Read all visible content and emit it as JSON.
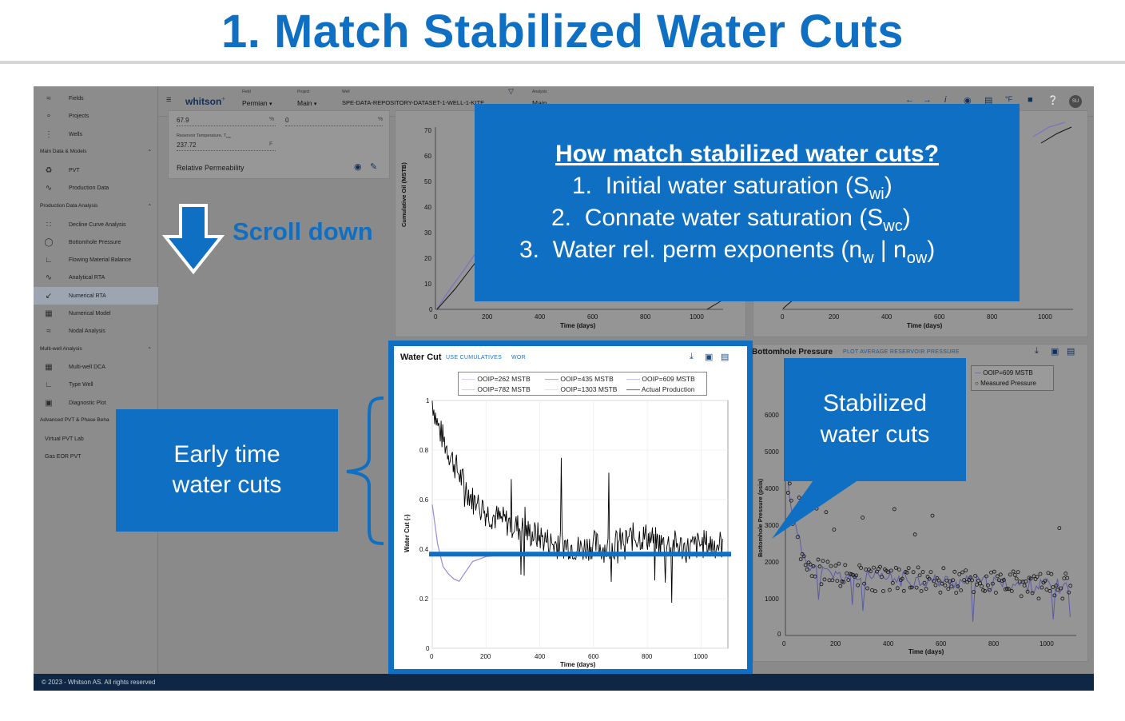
{
  "slide": {
    "title": "1. Match Stabilized Water Cuts"
  },
  "sidebar": {
    "items": [
      {
        "label": "Fields",
        "icon": "fields-icon"
      },
      {
        "label": "Projects",
        "icon": "projects-icon"
      },
      {
        "label": "Wells",
        "icon": "wells-icon"
      }
    ],
    "sections": [
      {
        "label": "Main Data & Models"
      },
      {
        "label": "Production Data Analysis"
      },
      {
        "label": "Multi-well Analysis"
      },
      {
        "label": "Advanced PVT & Phase Beha"
      }
    ],
    "main_items": [
      {
        "label": "PVT",
        "icon": "flask-icon"
      },
      {
        "label": "Production Data",
        "icon": "trend-icon"
      }
    ],
    "pda_items": [
      {
        "label": "Decline Curve Analysis",
        "icon": "scatter-icon"
      },
      {
        "label": "Bottomhole Pressure",
        "icon": "gauge-icon"
      },
      {
        "label": "Flowing Material Balance",
        "icon": "chart-icon"
      },
      {
        "label": "Analytical RTA",
        "icon": "trend-icon"
      },
      {
        "label": "Numerical RTA",
        "icon": "nrta-icon"
      },
      {
        "label": "Numerical Model",
        "icon": "grid-icon"
      },
      {
        "label": "Nodal Analysis",
        "icon": "nodal-icon"
      }
    ],
    "mw_items": [
      {
        "label": "Multi-well DCA",
        "icon": "multi-icon"
      },
      {
        "label": "Type Well",
        "icon": "type-well-icon"
      },
      {
        "label": "Diagnostic Plot",
        "icon": "diag-icon"
      }
    ],
    "adv_items": [
      {
        "label": "Virtual PVT Lab"
      },
      {
        "label": "Gas EOR PVT"
      }
    ],
    "footer": "© 2023 - Whitson AS. All rights reserved"
  },
  "topbar": {
    "brand": "whitson",
    "brand_sup": "+",
    "field_label": "Field",
    "field_value": "Permian",
    "project_label": "Project",
    "project_value": "Main",
    "well_label": "Well",
    "well_value": "SPE-DATA-REPOSITORY-DATASET-1-WELL-1-KITE",
    "analysis_label": "Analysis",
    "analysis_value": "Main"
  },
  "left_panel": {
    "field1_value": "67.9",
    "field1_unit": "%",
    "field2_value": "0",
    "field2_unit": "%",
    "temp_label": "Reservoir Temperature, T",
    "temp_sub": "res",
    "temp_value": "237.72",
    "temp_unit": "F",
    "relperm_label": "Relative Permeability"
  },
  "callouts": {
    "scroll_down": "Scroll down",
    "question_title": "How match stabilized water cuts?",
    "q_items": [
      {
        "num": "1.",
        "text": "Initial water saturation (S",
        "sub": "wi",
        "tail": ")"
      },
      {
        "num": "2.",
        "text": "Connate water saturation (S",
        "sub": "wc",
        "tail": ")"
      },
      {
        "num": "3.",
        "text": "Water rel. perm exponents (n",
        "sub": "w",
        "mid": " | n",
        "sub2": "ow",
        "tail": ")"
      }
    ],
    "early_line1": "Early time",
    "early_line2": "water cuts",
    "stab_line1": "Stabilized",
    "stab_line2": "water cuts"
  },
  "top_left_chart": {
    "ylabel": "Cumulative Oil (MSTB)",
    "xlabel": "Time (days)",
    "yticks": [
      "70",
      "60",
      "50",
      "40",
      "30",
      "20",
      "10",
      "0"
    ],
    "xticks": [
      "0",
      "200",
      "400",
      "600",
      "800",
      "1000"
    ]
  },
  "top_right_chart": {
    "xlabel": "Time (days)",
    "xticks": [
      "0",
      "200",
      "400",
      "600",
      "800",
      "1000"
    ]
  },
  "bhp_panel": {
    "title": "Bottomhole Pressure",
    "link": "PLOT AVERAGE RESERVOIR PRESSURE",
    "ylabel": "Bottomhole Pressure (psia)",
    "xlabel": "Time (days)",
    "yticks": [
      "6000",
      "5000",
      "4000",
      "3000",
      "2000",
      "1000",
      "0"
    ],
    "xticks": [
      "0",
      "200",
      "400",
      "600",
      "800",
      "1000"
    ],
    "legend": [
      "OOIP=609 MSTB",
      "Measured Pressure"
    ]
  },
  "wc_panel": {
    "title": "Water Cut",
    "link1": "USE CUMULATIVES",
    "link2": "WOR",
    "ylabel": "Water Cut (-)",
    "xlabel": "Time (days)",
    "yticks": [
      "1",
      "0.8",
      "0.6",
      "0.4",
      "0.2",
      "0"
    ],
    "xticks": [
      "0",
      "200",
      "400",
      "600",
      "800",
      "1000"
    ],
    "legend": [
      "OOIP=262 MSTB",
      "OOIP=435 MSTB",
      "OOIP=609 MSTB",
      "OOIP=782 MSTB",
      "OOIP=1303 MSTB",
      "Actual Production"
    ]
  },
  "chart_data": {
    "type": "line",
    "title": "Water Cut",
    "xlabel": "Time (days)",
    "ylabel": "Water Cut (-)",
    "xlim": [
      0,
      1100
    ],
    "ylim": [
      0,
      1
    ],
    "series": [
      {
        "name": "Actual Production",
        "color": "#000000",
        "x": [
          0,
          20,
          50,
          80,
          110,
          150,
          200,
          250,
          300,
          350,
          400,
          450,
          500,
          550,
          600,
          650,
          700,
          750,
          800,
          850,
          900,
          950,
          1000,
          1050,
          1080
        ],
        "y": [
          1.0,
          0.9,
          0.82,
          0.75,
          0.68,
          0.6,
          0.55,
          0.52,
          0.5,
          0.47,
          0.45,
          0.42,
          0.42,
          0.4,
          0.42,
          0.4,
          0.43,
          0.45,
          0.45,
          0.42,
          0.42,
          0.4,
          0.42,
          0.42,
          0.42
        ]
      },
      {
        "name": "OOIP=609 MSTB",
        "color": "#6a5acd",
        "x": [
          0,
          20,
          40,
          60,
          80,
          100,
          150,
          200,
          300,
          400,
          500,
          600,
          700,
          800,
          900,
          1000,
          1080
        ],
        "y": [
          0.58,
          0.42,
          0.33,
          0.3,
          0.28,
          0.27,
          0.35,
          0.37,
          0.38,
          0.38,
          0.38,
          0.38,
          0.38,
          0.38,
          0.38,
          0.38,
          0.38
        ]
      }
    ],
    "annotation": {
      "stabilized_level": 0.38
    }
  }
}
